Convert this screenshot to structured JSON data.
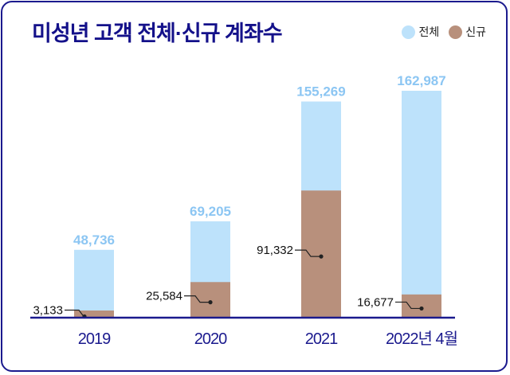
{
  "chart_data": {
    "type": "bar",
    "title": "미성년 고객 전체·신규 계좌수",
    "categories": [
      "2019",
      "2020",
      "2021",
      "2022년 4월"
    ],
    "series": [
      {
        "name": "전체",
        "values": [
          48736,
          69205,
          155269,
          162987
        ],
        "labels": [
          "48,736",
          "69,205",
          "155,269",
          "162,987"
        ],
        "color": "#bde2fb",
        "label_color": "#8cc6f3"
      },
      {
        "name": "신규",
        "values": [
          3133,
          25584,
          91332,
          16677
        ],
        "labels": [
          "3,133",
          "25,584",
          "91,332",
          "16,677"
        ],
        "color": "#b8907c"
      }
    ],
    "overlay": true,
    "ylim": [
      0,
      162987
    ],
    "grid": false,
    "legend": "top-right",
    "axis_color": "#1b1a8e"
  }
}
